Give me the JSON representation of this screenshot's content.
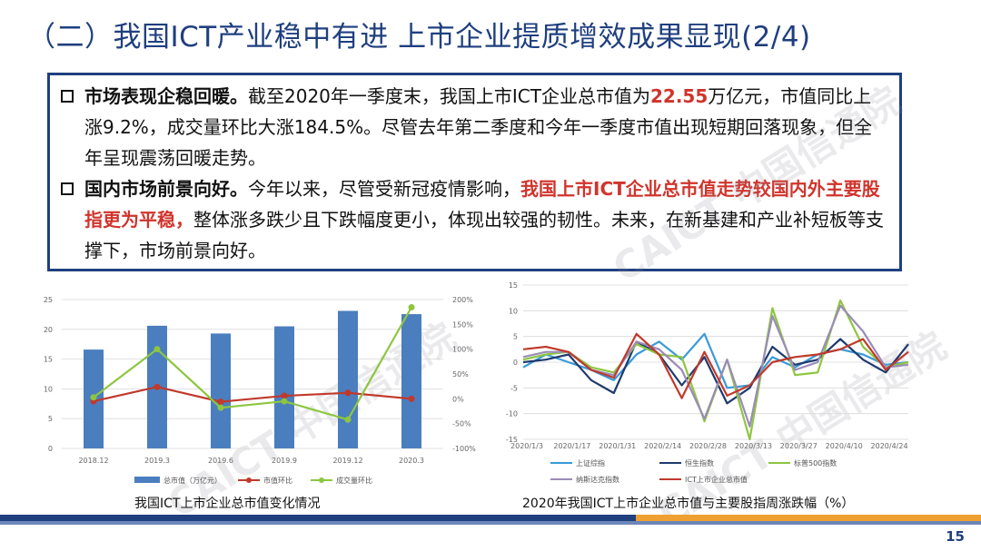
{
  "slide": {
    "title": "（二）我国ICT产业稳中有进 上市企业提质增效成果显现(2/4)",
    "page_number": "15"
  },
  "text_box": {
    "p1": {
      "lead": "市场表现企稳回暖。",
      "t1": "截至2020年一季度末，我国上市ICT企业总市值为",
      "value": "22.55",
      "t2": "万亿元，市值同比上涨9.2%，成交量环比大涨184.5%。尽管去年第二季度和今年一季度市值出现短期回落现象，但全年呈现震荡回暖走势。"
    },
    "p2": {
      "lead": "国内市场前景向好。",
      "t1": "今年以来，尽管受新冠疫情影响，",
      "highlight": "我国上市ICT企业总市值走势较国内外主要股指更为平稳，",
      "t2": "整体涨多跌少且下跌幅度更小，体现出较强的韧性。未来，在新基建和产业补短板等支撑下，市场前景向好。"
    }
  },
  "watermarks": [
    "CAICT 中国信通院",
    "CAICT 中国信通院",
    "CAICT 中国信通院"
  ],
  "captions": {
    "left": "我国ICT上市企业总市值变化情况",
    "right": "2020年我国ICT上市企业总市值与主要股指周涨跌幅（%）"
  },
  "colors": {
    "blue": "#4a7ebf",
    "red": "#c0392b",
    "green": "#8dc63f",
    "navy": "#1f3a6e",
    "purple": "#9b8bb8",
    "teal": "#3a9ad9",
    "accent": "#1f3f7f"
  },
  "chart_data": [
    {
      "type": "bar",
      "title": "",
      "categories": [
        "2018.12",
        "2019.3",
        "2019.6",
        "2019.9",
        "2019.12",
        "2020.3"
      ],
      "ylim": [
        0,
        25
      ],
      "yticks": [
        "0",
        "5",
        "10",
        "15",
        "20",
        "25"
      ],
      "y2lim": [
        -100,
        200
      ],
      "y2ticks": [
        "-100%",
        "-50%",
        "0%",
        "50%",
        "100%",
        "150%",
        "200%"
      ],
      "series": [
        {
          "name": "总市值（万亿元）",
          "axis": "left",
          "kind": "bar",
          "values": [
            16.6,
            20.6,
            19.3,
            20.5,
            23.1,
            22.55
          ]
        },
        {
          "name": "市值环比",
          "axis": "right",
          "kind": "line",
          "values": [
            -5,
            24,
            -6,
            6,
            12,
            0
          ]
        },
        {
          "name": "成交量环比",
          "axis": "right",
          "kind": "line",
          "values": [
            3,
            100,
            -18,
            -5,
            -42,
            184.5
          ]
        }
      ]
    },
    {
      "type": "line",
      "title": "",
      "categories": [
        "2020/1/3",
        "2020/1/17",
        "2020/1/31",
        "2020/2/14",
        "2020/2/28",
        "2020/3/13",
        "2020/3/27",
        "2020/4/10",
        "2020/4/24"
      ],
      "x": [
        "1/3",
        "1/10",
        "1/17",
        "1/24",
        "1/31",
        "2/7",
        "2/14",
        "2/21",
        "2/28",
        "3/6",
        "3/13",
        "3/20",
        "3/27",
        "4/3",
        "4/10",
        "4/17",
        "4/24",
        "5/1"
      ],
      "ylim": [
        -15,
        15
      ],
      "yticks": [
        "-15",
        "-10",
        "-5",
        "0",
        "5",
        "10",
        "15"
      ],
      "series": [
        {
          "name": "上证综指",
          "values": [
            -1,
            1.5,
            0,
            -1.5,
            -3.5,
            1.5,
            4,
            0.5,
            5.5,
            -5,
            -4.5,
            1,
            -1,
            1.5,
            2.5,
            1.5,
            -0.5,
            0
          ]
        },
        {
          "name": "恒生指数",
          "values": [
            0,
            0.5,
            1.5,
            -3.5,
            -6,
            4,
            1.5,
            -4.5,
            1,
            -8,
            -5,
            3,
            -0.5,
            0.5,
            4.5,
            0.5,
            -2,
            3.5
          ]
        },
        {
          "name": "标普500指数",
          "values": [
            0.5,
            1.5,
            2,
            -1,
            -2,
            3.5,
            1.5,
            1,
            -11.5,
            0.5,
            -15,
            10.5,
            -2.5,
            -2,
            12,
            3,
            -1,
            0
          ]
        },
        {
          "name": "纳斯达克指数",
          "values": [
            1,
            2,
            2,
            -1.5,
            -2.5,
            4,
            2.5,
            -1.5,
            -11,
            0.5,
            -12.5,
            9,
            -1.5,
            0,
            11,
            6,
            -1,
            -0.5
          ]
        },
        {
          "name": "ICT上市企业总市值",
          "values": [
            2.5,
            3,
            2,
            -1.5,
            -3,
            5.5,
            1.5,
            -7,
            2,
            -6.5,
            -4.5,
            0,
            1,
            1.5,
            2.5,
            4.5,
            -1.5,
            2
          ]
        }
      ]
    }
  ]
}
